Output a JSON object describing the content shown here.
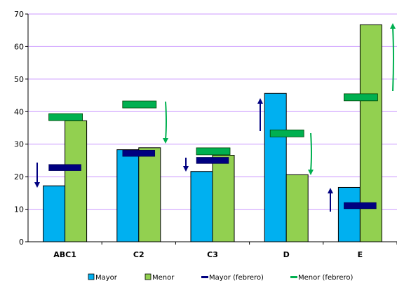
{
  "chart_data": {
    "type": "bar",
    "categories": [
      "ABC1",
      "C2",
      "C3",
      "D",
      "E"
    ],
    "series": [
      {
        "name": "Mayor",
        "kind": "bar",
        "color": "#00B0F0",
        "values": [
          17.2,
          28.3,
          21.6,
          45.6,
          16.7
        ]
      },
      {
        "name": "Menor",
        "kind": "bar",
        "color": "#92D050",
        "values": [
          37.2,
          28.9,
          26.6,
          20.6,
          66.7
        ]
      },
      {
        "name": "Mayor (febrero)",
        "kind": "marker",
        "color": "#000080",
        "values": [
          22.8,
          27.2,
          25.0,
          null,
          11.1
        ]
      },
      {
        "name": "Menor (febrero)",
        "kind": "marker",
        "color": "#00B050",
        "values": [
          38.3,
          42.2,
          27.8,
          33.3,
          44.4
        ]
      }
    ],
    "arrows": [
      {
        "category": "ABC1",
        "direction": "down",
        "color": "#000080"
      },
      {
        "category": "C2",
        "direction": "down",
        "color": "#00B050"
      },
      {
        "category": "C3",
        "direction": "down",
        "color": "#000080"
      },
      {
        "category": "D",
        "direction": "up",
        "color": "#000080"
      },
      {
        "category": "D",
        "direction": "down",
        "color": "#00B050"
      },
      {
        "category": "E",
        "direction": "up",
        "color": "#000080"
      },
      {
        "category": "E",
        "direction": "up",
        "color": "#00B050"
      }
    ],
    "ylim": [
      0,
      70
    ],
    "yticks": [
      0,
      10,
      20,
      30,
      40,
      50,
      60,
      70
    ],
    "grid": true,
    "gridColor": "#CC99FF",
    "legend": "bottom",
    "title": "",
    "xlabel": "",
    "ylabel": ""
  }
}
